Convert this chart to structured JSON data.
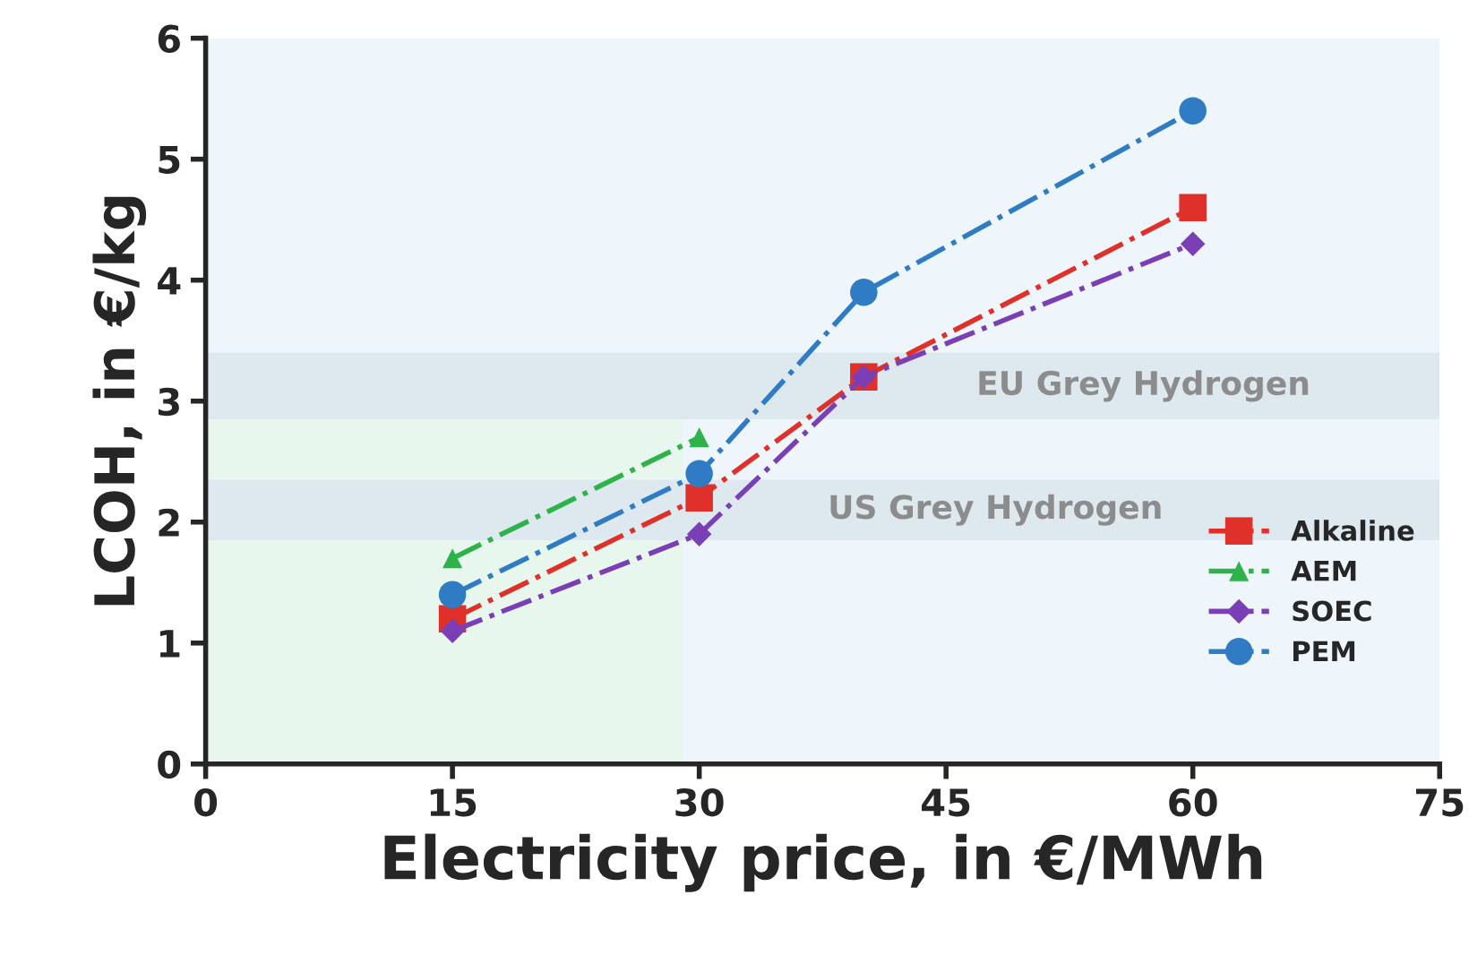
{
  "chart_data": {
    "type": "line",
    "xlabel": "Electricity price, in €/MWh",
    "ylabel": "LCOH, in €/kg",
    "series": [
      {
        "name": "Alkaline",
        "color": "#e0302a",
        "marker": "square",
        "x": [
          15,
          30,
          40,
          60
        ],
        "values": [
          1.2,
          2.2,
          3.2,
          4.6
        ]
      },
      {
        "name": "AEM",
        "color": "#2db34a",
        "marker": "triangle",
        "x": [
          15,
          30
        ],
        "values": [
          1.7,
          2.7
        ]
      },
      {
        "name": "SOEC",
        "color": "#7b3fb5",
        "marker": "diamond",
        "x": [
          15,
          30,
          40,
          60
        ],
        "values": [
          1.1,
          1.9,
          3.2,
          4.3
        ]
      },
      {
        "name": "PEM",
        "color": "#2f7cc4",
        "marker": "circle",
        "x": [
          15,
          30,
          40,
          60
        ],
        "values": [
          1.4,
          2.4,
          3.9,
          5.4
        ]
      }
    ],
    "line_style": "dashdot",
    "xlim": [
      0,
      75
    ],
    "xticks": [
      0,
      15,
      30,
      45,
      60,
      75
    ],
    "ylim": [
      0,
      6
    ],
    "yticks": [
      0,
      1,
      2,
      3,
      4,
      5,
      6
    ],
    "bands": [
      {
        "axis": "x",
        "from": 0,
        "to": 29,
        "label": null,
        "color": "#e8f7ee"
      },
      {
        "axis": "y",
        "from": 2.85,
        "to": 3.4,
        "label": "EU Grey Hydrogen",
        "color": "#dde8ef"
      },
      {
        "axis": "y",
        "from": 1.85,
        "to": 2.35,
        "label": "US Grey Hydrogen",
        "color": "#dde8ef"
      }
    ],
    "grid": false,
    "legend": "bottom right"
  }
}
